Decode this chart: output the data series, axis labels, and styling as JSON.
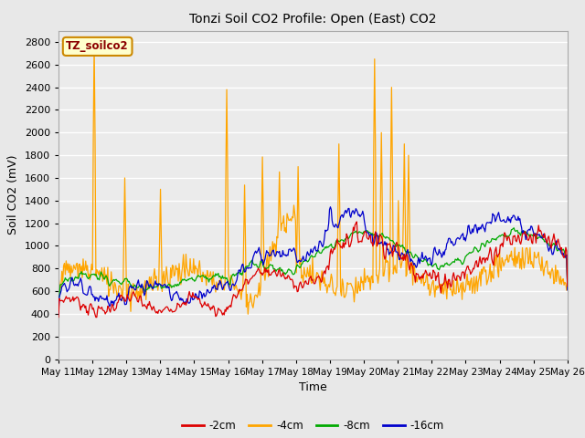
{
  "title": "Tonzi Soil CO2 Profile: Open (East) CO2",
  "xlabel": "Time",
  "ylabel": "Soil CO2 (mV)",
  "ylim": [
    0,
    2900
  ],
  "yticks": [
    0,
    200,
    400,
    600,
    800,
    1000,
    1200,
    1400,
    1600,
    1800,
    2000,
    2200,
    2400,
    2600,
    2800
  ],
  "legend_label": "TZ_soilco2",
  "series_labels": [
    "-2cm",
    "-4cm",
    "-8cm",
    "-16cm"
  ],
  "series_colors": [
    "#dd0000",
    "#ffa500",
    "#00aa00",
    "#0000cc"
  ],
  "bg_color": "#e8e8e8",
  "plot_bg_color": "#ebebeb",
  "grid_color": "#ffffff",
  "x_tick_labels": [
    "May 11",
    "May 12",
    "May 13",
    "May 14",
    "May 15",
    "May 16",
    "May 17",
    "May 18",
    "May 19",
    "May 20",
    "May 21",
    "May 22",
    "May 23",
    "May 24",
    "May 25",
    "May 26"
  ],
  "n_points": 600
}
